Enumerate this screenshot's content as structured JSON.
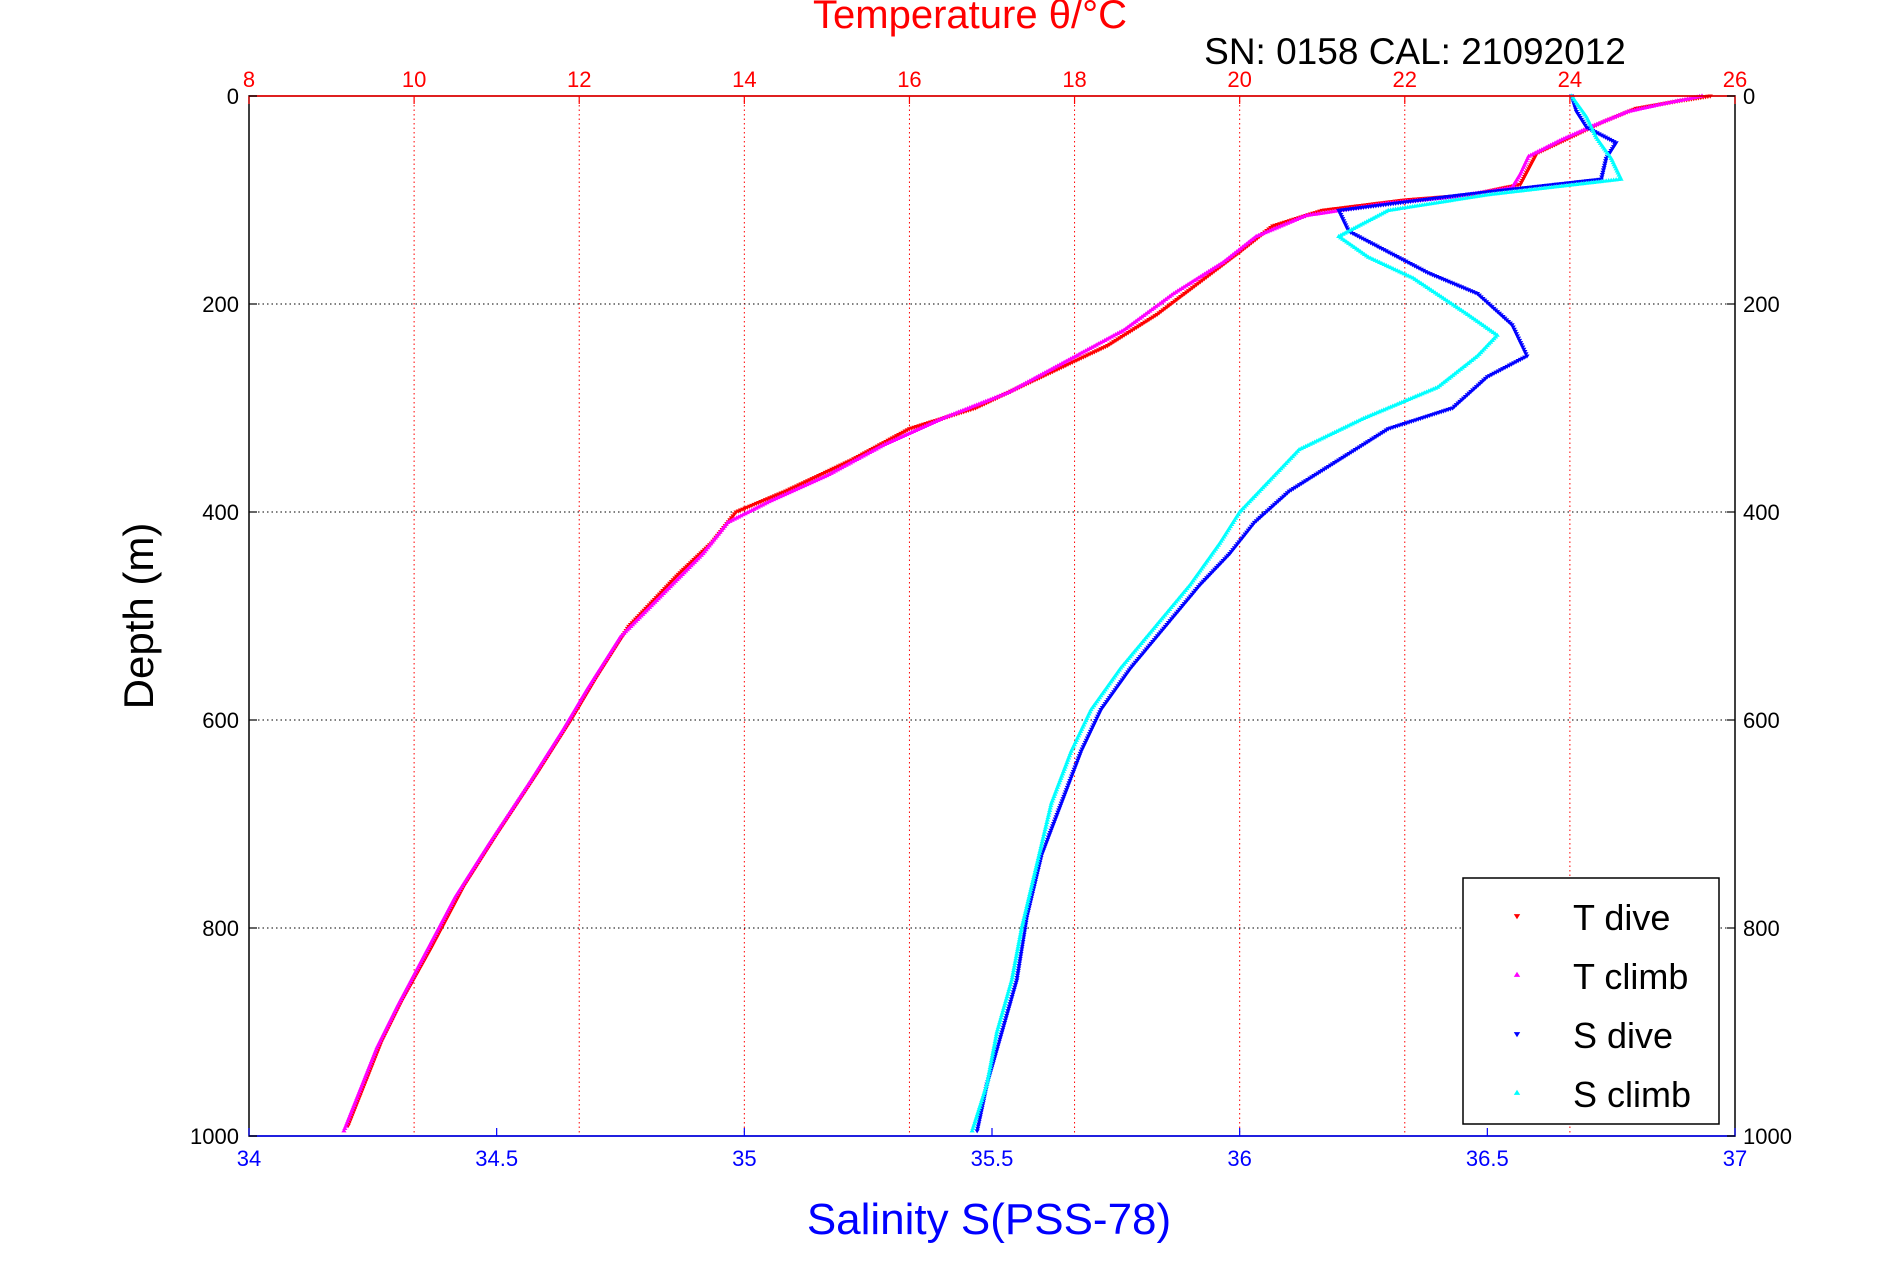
{
  "chart_data": {
    "type": "scatter",
    "title": "Temperature θ/°C",
    "subtitle": "SN: 0158  CAL: 21092012",
    "xlabel": "Salinity S(PSS-78)",
    "x2label": "Temperature θ/°C",
    "ylabel": "Depth (m)",
    "xlim": [
      34,
      37
    ],
    "x2lim": [
      8,
      26
    ],
    "ylim": [
      0,
      1000
    ],
    "y_reversed": true,
    "grid": true,
    "legend_position": "bottom-right",
    "xticks": [
      "34",
      "34.5",
      "35",
      "35.5",
      "36",
      "36.5",
      "37"
    ],
    "x2ticks": [
      "8",
      "10",
      "12",
      "14",
      "16",
      "18",
      "20",
      "22",
      "24",
      "26"
    ],
    "yticks": [
      "0",
      "200",
      "400",
      "600",
      "800",
      "1000"
    ],
    "yticks_right": [
      "0",
      "200",
      "400",
      "600",
      "800",
      "1000"
    ],
    "colors": {
      "temperature_axis": "#ff0000",
      "salinity_axis": "#0000ff",
      "t_dive": "#ff0000",
      "t_climb": "#ff00ff",
      "s_dive": "#0000ff",
      "s_climb": "#00ffff"
    },
    "series": [
      {
        "name": "T dive",
        "axis": "temperature",
        "marker": "triangle-down",
        "color": "#ff0000",
        "points": [
          [
            25.7,
            0
          ],
          [
            25.3,
            5
          ],
          [
            24.8,
            12
          ],
          [
            24.4,
            25
          ],
          [
            24.0,
            40
          ],
          [
            23.6,
            55
          ],
          [
            23.5,
            70
          ],
          [
            23.4,
            85
          ],
          [
            22.8,
            95
          ],
          [
            22.0,
            100
          ],
          [
            21.0,
            110
          ],
          [
            20.4,
            125
          ],
          [
            20.0,
            150
          ],
          [
            19.5,
            180
          ],
          [
            19.0,
            210
          ],
          [
            18.4,
            240
          ],
          [
            17.6,
            270
          ],
          [
            16.8,
            300
          ],
          [
            16.0,
            320
          ],
          [
            15.3,
            350
          ],
          [
            14.5,
            380
          ],
          [
            13.9,
            400
          ],
          [
            13.6,
            430
          ],
          [
            13.2,
            460
          ],
          [
            12.6,
            510
          ],
          [
            12.2,
            560
          ],
          [
            11.9,
            600
          ],
          [
            11.5,
            650
          ],
          [
            11.0,
            710
          ],
          [
            10.6,
            760
          ],
          [
            10.2,
            820
          ],
          [
            9.85,
            870
          ],
          [
            9.6,
            910
          ],
          [
            9.4,
            950
          ],
          [
            9.2,
            990
          ]
        ]
      },
      {
        "name": "T climb",
        "axis": "temperature",
        "marker": "triangle-up",
        "color": "#ff00ff",
        "points": [
          [
            25.6,
            0
          ],
          [
            25.1,
            8
          ],
          [
            24.7,
            15
          ],
          [
            24.3,
            28
          ],
          [
            23.9,
            42
          ],
          [
            23.5,
            58
          ],
          [
            23.4,
            75
          ],
          [
            23.3,
            88
          ],
          [
            22.6,
            97
          ],
          [
            21.8,
            103
          ],
          [
            20.8,
            115
          ],
          [
            20.2,
            135
          ],
          [
            19.8,
            160
          ],
          [
            19.2,
            190
          ],
          [
            18.6,
            225
          ],
          [
            17.9,
            255
          ],
          [
            17.2,
            285
          ],
          [
            16.4,
            310
          ],
          [
            15.7,
            335
          ],
          [
            15.0,
            365
          ],
          [
            14.3,
            390
          ],
          [
            13.8,
            410
          ],
          [
            13.5,
            440
          ],
          [
            13.0,
            480
          ],
          [
            12.5,
            520
          ],
          [
            12.1,
            570
          ],
          [
            11.8,
            610
          ],
          [
            11.4,
            660
          ],
          [
            10.9,
            720
          ],
          [
            10.5,
            770
          ],
          [
            10.1,
            830
          ],
          [
            9.8,
            875
          ],
          [
            9.55,
            915
          ],
          [
            9.35,
            955
          ],
          [
            9.15,
            995
          ]
        ]
      },
      {
        "name": "S dive",
        "axis": "salinity",
        "marker": "triangle-down",
        "color": "#0000ff",
        "points": [
          [
            36.67,
            0
          ],
          [
            36.68,
            15
          ],
          [
            36.7,
            30
          ],
          [
            36.76,
            45
          ],
          [
            36.74,
            60
          ],
          [
            36.73,
            80
          ],
          [
            36.45,
            95
          ],
          [
            36.2,
            110
          ],
          [
            36.22,
            130
          ],
          [
            36.3,
            150
          ],
          [
            36.38,
            170
          ],
          [
            36.48,
            190
          ],
          [
            36.55,
            220
          ],
          [
            36.58,
            250
          ],
          [
            36.5,
            270
          ],
          [
            36.43,
            300
          ],
          [
            36.3,
            320
          ],
          [
            36.2,
            350
          ],
          [
            36.1,
            380
          ],
          [
            36.03,
            410
          ],
          [
            35.98,
            440
          ],
          [
            35.92,
            470
          ],
          [
            35.85,
            510
          ],
          [
            35.78,
            550
          ],
          [
            35.72,
            590
          ],
          [
            35.68,
            630
          ],
          [
            35.64,
            680
          ],
          [
            35.6,
            730
          ],
          [
            35.57,
            790
          ],
          [
            35.55,
            850
          ],
          [
            35.52,
            900
          ],
          [
            35.49,
            950
          ],
          [
            35.47,
            995
          ]
        ]
      },
      {
        "name": "S climb",
        "axis": "salinity",
        "marker": "triangle-up",
        "color": "#00ffff",
        "points": [
          [
            36.67,
            0
          ],
          [
            36.7,
            20
          ],
          [
            36.72,
            40
          ],
          [
            36.75,
            60
          ],
          [
            36.77,
            80
          ],
          [
            36.5,
            95
          ],
          [
            36.3,
            110
          ],
          [
            36.2,
            135
          ],
          [
            36.26,
            155
          ],
          [
            36.35,
            175
          ],
          [
            36.46,
            210
          ],
          [
            36.52,
            230
          ],
          [
            36.48,
            250
          ],
          [
            36.4,
            280
          ],
          [
            36.25,
            310
          ],
          [
            36.12,
            340
          ],
          [
            36.06,
            370
          ],
          [
            36.0,
            400
          ],
          [
            35.96,
            430
          ],
          [
            35.9,
            470
          ],
          [
            35.83,
            510
          ],
          [
            35.76,
            550
          ],
          [
            35.7,
            590
          ],
          [
            35.66,
            630
          ],
          [
            35.62,
            680
          ],
          [
            35.59,
            740
          ],
          [
            35.56,
            800
          ],
          [
            35.54,
            850
          ],
          [
            35.51,
            900
          ],
          [
            35.49,
            950
          ],
          [
            35.46,
            995
          ]
        ]
      }
    ]
  }
}
